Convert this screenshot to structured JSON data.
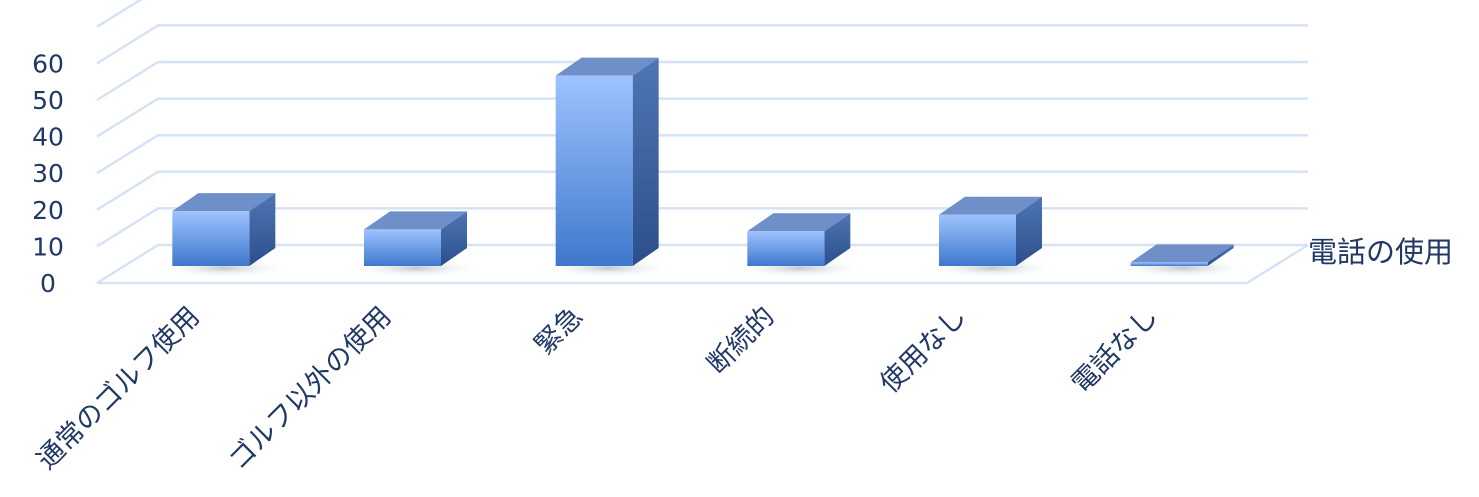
{
  "chart_data": {
    "type": "bar",
    "categories": [
      "通常のゴルフ使用",
      "ゴルフ以外の使用",
      "緊急",
      "断続的",
      "使用なし",
      "電話なし"
    ],
    "series": [
      {
        "name": "電話の使用",
        "values": [
          15,
          10,
          52,
          9.5,
          14,
          1
        ]
      }
    ],
    "y_ticks": [
      "0",
      "10",
      "20",
      "30",
      "40",
      "50",
      "60"
    ],
    "ylim": [
      0,
      60
    ],
    "grid": true,
    "colors": {
      "text": "#1f3864",
      "grid": "#d6e3f4",
      "bar_front_top": "#9ec3ff",
      "bar_front_bottom": "#3e78cc",
      "bar_side": "#2e5590",
      "bar_top": "#6f8fc8"
    }
  }
}
